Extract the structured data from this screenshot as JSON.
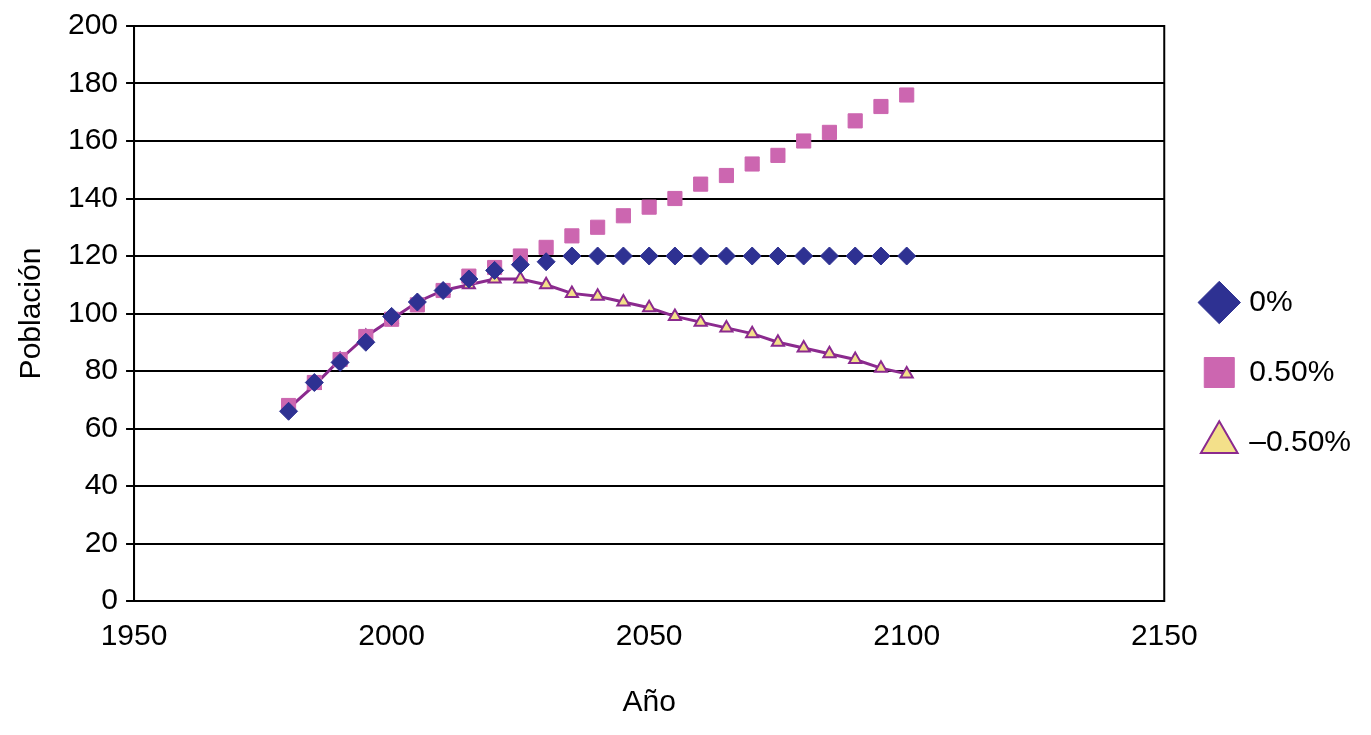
{
  "chart_data": {
    "type": "scatter",
    "x_label": "Año",
    "y_label": "Población",
    "xlim": [
      1950,
      2150
    ],
    "xticks": [
      1950,
      2000,
      2050,
      2100,
      2150
    ],
    "ylim": [
      0,
      200
    ],
    "yticks": [
      0,
      20,
      40,
      60,
      80,
      100,
      120,
      140,
      160,
      180,
      200
    ],
    "grid": "y",
    "legend": "right",
    "x": [
      1980,
      1985,
      1990,
      1995,
      2000,
      2005,
      2010,
      2015,
      2020,
      2025,
      2030,
      2035,
      2040,
      2045,
      2050,
      2055,
      2060,
      2065,
      2070,
      2075,
      2080,
      2085,
      2090,
      2095,
      2100
    ],
    "series": [
      {
        "name": "0%",
        "color": "#2e3192",
        "marker": "diamond",
        "line_style": "none",
        "values": [
          66,
          76,
          83,
          90,
          99,
          104,
          108,
          112,
          115,
          117,
          118,
          120,
          120,
          120,
          120,
          120,
          120,
          120,
          120,
          120,
          120,
          120,
          120,
          120,
          120
        ]
      },
      {
        "name": "0.50%",
        "color": "#cc66b0",
        "marker": "square",
        "line_style": "none",
        "values": [
          68,
          76,
          84,
          92,
          98,
          103,
          108,
          113,
          116,
          120,
          123,
          127,
          130,
          134,
          137,
          140,
          145,
          148,
          152,
          155,
          160,
          163,
          167,
          172,
          176
        ]
      },
      {
        "name": "–0.50%",
        "color": "#8b2a8e",
        "marker": "triangle",
        "line_style": "solid",
        "values": [
          67,
          75,
          84,
          92,
          98,
          104,
          108,
          110,
          112,
          112,
          110,
          107,
          106,
          104,
          102,
          99,
          97,
          95,
          93,
          90,
          88,
          86,
          84,
          81,
          79
        ]
      }
    ]
  }
}
